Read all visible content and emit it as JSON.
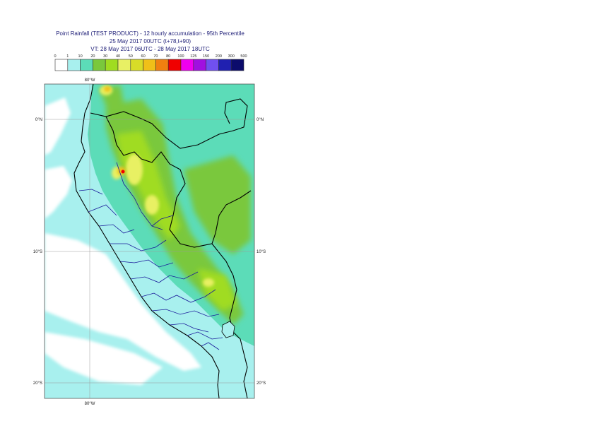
{
  "title": {
    "line1": "Point Rainfall (TEST PRODUCT) - 12 hourly accumulation - 95th Percentile",
    "line2": "25 May 2017 00UTC (t+78,t+90)",
    "line3": "VT: 28 May 2017 06UTC - 28 May 2017 18UTC"
  },
  "legend": {
    "levels": [
      "0",
      "1",
      "10",
      "20",
      "30",
      "40",
      "50",
      "60",
      "70",
      "80",
      "100",
      "125",
      "150",
      "200",
      "300",
      "500"
    ],
    "colors": [
      "#ffffff",
      "#a8f0ee",
      "#5cdcb8",
      "#7ac83c",
      "#a0dc20",
      "#e8f064",
      "#d8dc28",
      "#f0c018",
      "#f08010",
      "#f00000",
      "#f000f0",
      "#a010e0",
      "#7050f0",
      "#2020b0",
      "#0c0c6c"
    ]
  },
  "axes": {
    "lon_label_top": "80°W",
    "lon_label_bottom": "80°W",
    "lat_labels": [
      "0°N",
      "10°S",
      "20°S"
    ]
  },
  "colors": {
    "land_base": "#5cdcb8",
    "sea": "#a8f0ee",
    "border_national": "#000000",
    "border_regional": "#1a1a9a"
  }
}
